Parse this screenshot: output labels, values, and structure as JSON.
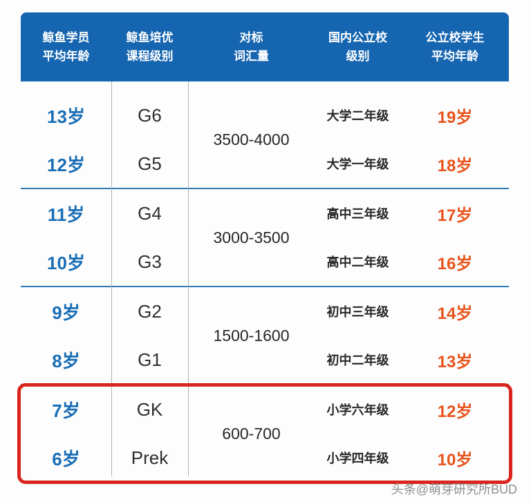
{
  "header": {
    "cols": [
      {
        "line1": "鲸鱼学员",
        "line2": "平均年龄"
      },
      {
        "line1": "鲸鱼培优",
        "line2": "课程级别"
      },
      {
        "line1": "对标",
        "line2": "词汇量"
      },
      {
        "line1": "国内公立校",
        "line2": "级别"
      },
      {
        "line1": "公立校学生",
        "line2": "平均年龄"
      }
    ]
  },
  "groups": [
    {
      "vocab": "3500-4000",
      "highlighted": false,
      "rows": [
        {
          "student_age": "13岁",
          "level": "G6",
          "school_level": "大学二年级",
          "public_age": "19岁"
        },
        {
          "student_age": "12岁",
          "level": "G5",
          "school_level": "大学一年级",
          "public_age": "18岁"
        }
      ]
    },
    {
      "vocab": "3000-3500",
      "highlighted": false,
      "rows": [
        {
          "student_age": "11岁",
          "level": "G4",
          "school_level": "高中三年级",
          "public_age": "17岁"
        },
        {
          "student_age": "10岁",
          "level": "G3",
          "school_level": "高中二年级",
          "public_age": "16岁"
        }
      ]
    },
    {
      "vocab": "1500-1600",
      "highlighted": false,
      "rows": [
        {
          "student_age": "9岁",
          "level": "G2",
          "school_level": "初中三年级",
          "public_age": "14岁"
        },
        {
          "student_age": "8岁",
          "level": "G1",
          "school_level": "初中二年级",
          "public_age": "13岁"
        }
      ]
    },
    {
      "vocab": "600-700",
      "highlighted": true,
      "rows": [
        {
          "student_age": "7岁",
          "level": "GK",
          "school_level": "小学六年级",
          "public_age": "12岁"
        },
        {
          "student_age": "6岁",
          "level": "Prek",
          "school_level": "小学四年级",
          "public_age": "10岁"
        }
      ]
    }
  ],
  "watermark": "头条@萌芽研究所BUD",
  "colors": {
    "header_bg": "#1565b0",
    "student_age_text": "#1a6eb6",
    "public_age_text": "#e8531b",
    "group_divider": "#2d7ab8",
    "column_divider": "#b0b0b0",
    "highlight_border": "#d9251d"
  },
  "chart_data": {
    "type": "table",
    "columns": [
      "鲸鱼学员平均年龄",
      "鲸鱼培优课程级别",
      "对标词汇量",
      "国内公立校级别",
      "公立校学生平均年龄"
    ],
    "rows": [
      [
        "13岁",
        "G6",
        "3500-4000",
        "大学二年级",
        "19岁"
      ],
      [
        "12岁",
        "G5",
        "3500-4000",
        "大学一年级",
        "18岁"
      ],
      [
        "11岁",
        "G4",
        "3000-3500",
        "高中三年级",
        "17岁"
      ],
      [
        "10岁",
        "G3",
        "3000-3500",
        "高中二年级",
        "16岁"
      ],
      [
        "9岁",
        "G2",
        "1500-1600",
        "初中三年级",
        "14岁"
      ],
      [
        "8岁",
        "G1",
        "1500-1600",
        "初中二年级",
        "13岁"
      ],
      [
        "7岁",
        "GK",
        "600-700",
        "小学六年级",
        "12岁"
      ],
      [
        "6岁",
        "Prek",
        "600-700",
        "小学四年级",
        "10岁"
      ]
    ],
    "merged_vocab_ranges": [
      "3500-4000",
      "3000-3500",
      "1500-1600",
      "600-700"
    ],
    "highlighted_row_indices": [
      6,
      7
    ]
  }
}
